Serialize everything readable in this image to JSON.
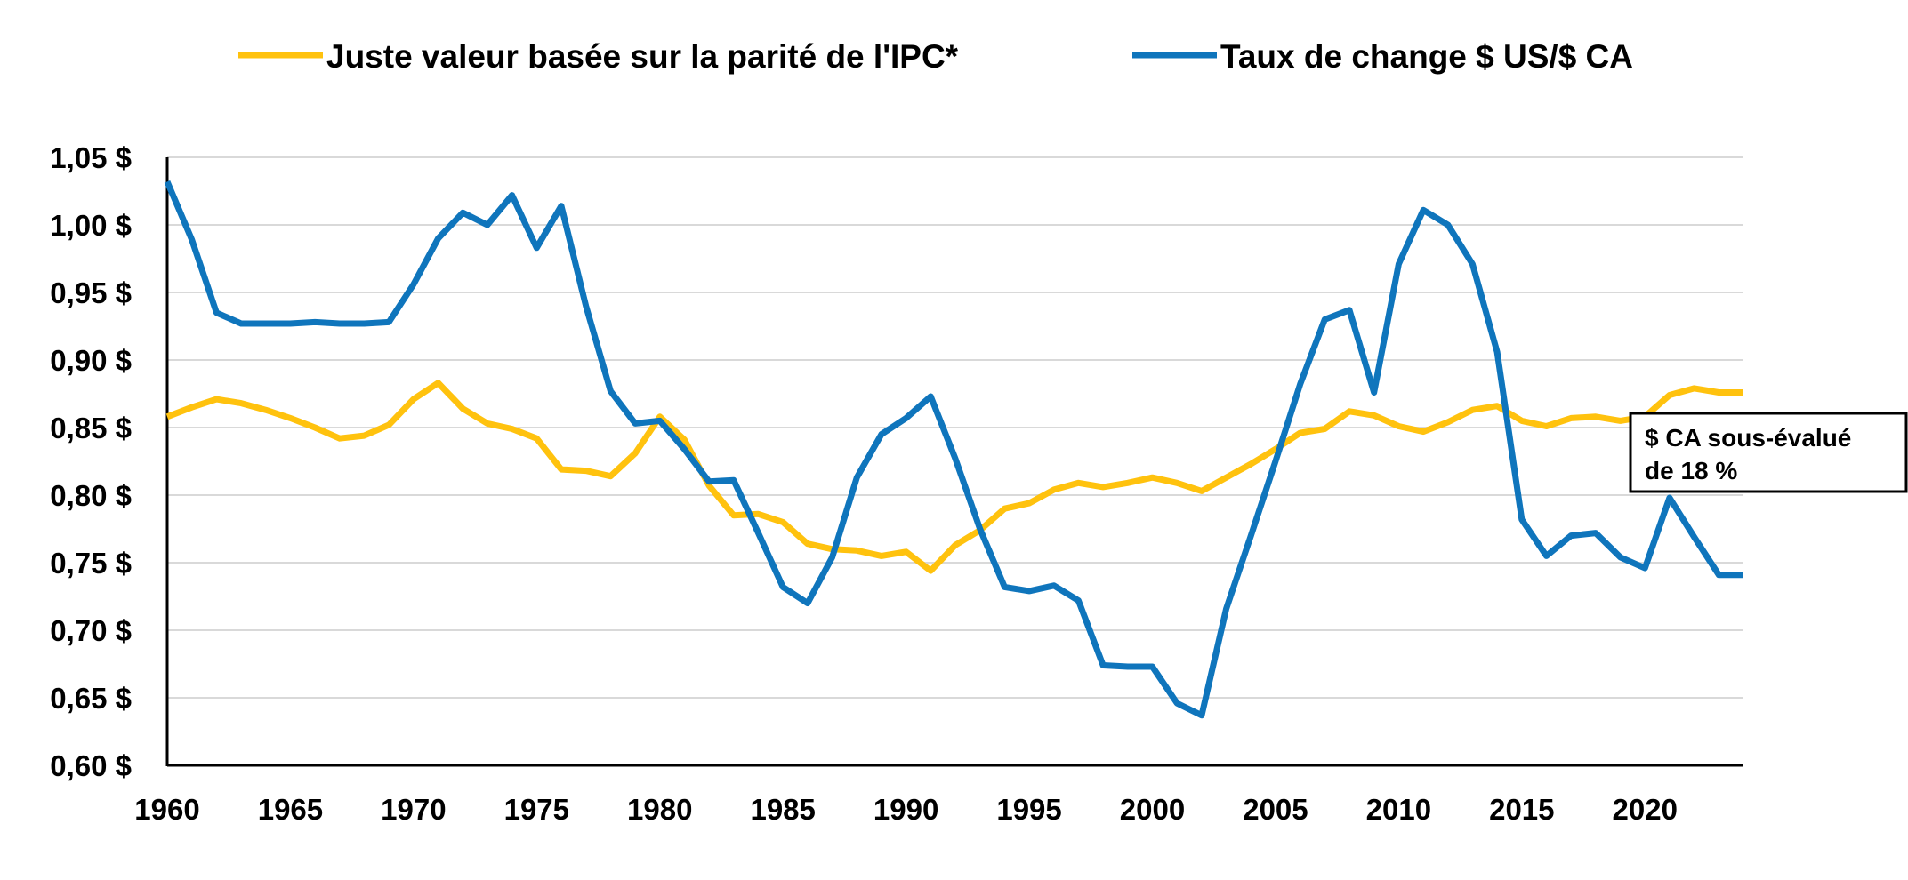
{
  "chart_data": {
    "type": "line",
    "title": "",
    "xlabel": "",
    "ylabel": "",
    "xlim": [
      1960,
      2024
    ],
    "ylim": [
      0.6,
      1.05
    ],
    "y_ticks": [
      0.6,
      0.65,
      0.7,
      0.75,
      0.8,
      0.85,
      0.9,
      0.95,
      1.0,
      1.05
    ],
    "y_tick_labels": [
      "0,60 $",
      "0,65 $",
      "0,70 $",
      "0,75 $",
      "0,80 $",
      "0,85 $",
      "0,90 $",
      "0,95 $",
      "1,00 $",
      "1,05 $"
    ],
    "x_ticks": [
      1960,
      1965,
      1970,
      1975,
      1980,
      1985,
      1990,
      1995,
      2000,
      2005,
      2010,
      2015,
      2020
    ],
    "x_tick_labels": [
      "1960",
      "1965",
      "1970",
      "1975",
      "1980",
      "1985",
      "1990",
      "1995",
      "2000",
      "2005",
      "2010",
      "2015",
      "2020"
    ],
    "grid": "horizontal",
    "legend_position": "top",
    "x": [
      1960,
      1961,
      1962,
      1963,
      1964,
      1965,
      1966,
      1967,
      1968,
      1969,
      1970,
      1971,
      1972,
      1973,
      1974,
      1975,
      1976,
      1977,
      1978,
      1979,
      1980,
      1981,
      1982,
      1983,
      1984,
      1985,
      1986,
      1987,
      1988,
      1989,
      1990,
      1991,
      1992,
      1993,
      1994,
      1995,
      1996,
      1997,
      1998,
      1999,
      2000,
      2001,
      2002,
      2003,
      2004,
      2005,
      2006,
      2007,
      2008,
      2009,
      2010,
      2011,
      2012,
      2013,
      2014,
      2015,
      2016,
      2017,
      2018,
      2019,
      2020,
      2021,
      2022,
      2023,
      2024
    ],
    "series": [
      {
        "name": "Juste valeur basée sur la parité de l'IPC*",
        "color": "#FFC20E",
        "values": [
          0.858,
          0.865,
          0.871,
          0.868,
          0.863,
          0.857,
          0.85,
          0.842,
          0.844,
          0.852,
          0.871,
          0.883,
          0.864,
          0.853,
          0.849,
          0.842,
          0.819,
          0.818,
          0.814,
          0.831,
          0.858,
          0.841,
          0.807,
          0.785,
          0.786,
          0.78,
          0.764,
          0.76,
          0.759,
          0.755,
          0.758,
          0.744,
          0.763,
          0.774,
          0.79,
          0.794,
          0.804,
          0.809,
          0.806,
          0.809,
          0.813,
          0.809,
          0.803,
          0.813,
          0.823,
          0.834,
          0.846,
          0.849,
          0.862,
          0.859,
          0.851,
          0.847,
          0.854,
          0.863,
          0.866,
          0.855,
          0.851,
          0.857,
          0.858,
          0.855,
          0.858,
          0.874,
          0.879,
          0.876,
          0.876
        ]
      },
      {
        "name": "Taux de change $ US/$ CA",
        "color": "#0F75BC",
        "values": [
          1.032,
          0.989,
          0.935,
          0.927,
          0.927,
          0.927,
          0.928,
          0.927,
          0.927,
          0.928,
          0.956,
          0.99,
          1.009,
          1.0,
          1.022,
          0.983,
          1.014,
          0.94,
          0.877,
          0.853,
          0.855,
          0.834,
          0.81,
          0.811,
          0.772,
          0.732,
          0.72,
          0.754,
          0.813,
          0.845,
          0.857,
          0.873,
          0.827,
          0.775,
          0.732,
          0.729,
          0.733,
          0.722,
          0.674,
          0.673,
          0.673,
          0.646,
          0.637,
          0.716,
          0.77,
          0.825,
          0.882,
          0.93,
          0.937,
          0.876,
          0.971,
          1.011,
          1.0,
          0.971,
          0.906,
          0.782,
          0.755,
          0.77,
          0.772,
          0.754,
          0.746,
          0.798,
          0.769,
          0.741,
          0.741
        ]
      }
    ],
    "annotation": {
      "line1": "$ CA sous-évalué",
      "line2": "de 18 %"
    }
  }
}
